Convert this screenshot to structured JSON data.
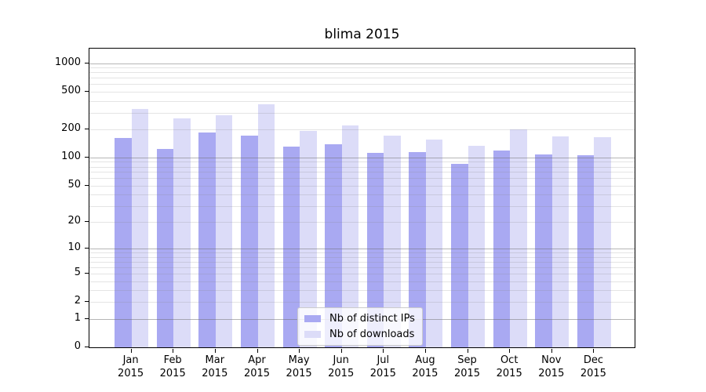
{
  "title": "blima 2015",
  "chart_data": {
    "type": "bar",
    "title": "blima 2015",
    "categories": [
      "Jan 2015",
      "Feb 2015",
      "Mar 2015",
      "Apr 2015",
      "May 2015",
      "Jun 2015",
      "Jul 2015",
      "Aug 2015",
      "Sep 2015",
      "Oct 2015",
      "Nov 2015",
      "Dec 2015"
    ],
    "series": [
      {
        "name": "Nb of distinct IPs",
        "color": "#a9a9f2",
        "values": [
          163,
          124,
          184,
          170,
          131,
          139,
          112,
          114,
          85,
          120,
          108,
          107
        ]
      },
      {
        "name": "Nb of downloads",
        "color": "#dcdcf8",
        "values": [
          331,
          260,
          280,
          366,
          194,
          222,
          172,
          157,
          134,
          198,
          169,
          166
        ]
      }
    ],
    "y_axis": {
      "scale": "log1p",
      "ticks": [
        0,
        1,
        2,
        5,
        10,
        20,
        50,
        100,
        200,
        500,
        1000
      ],
      "major_gridlines": [
        1,
        10,
        100,
        1000
      ],
      "top": 1430
    },
    "grid": true,
    "legend_position": "lower-center",
    "xlabel": "",
    "ylabel": ""
  },
  "legend": {
    "items": [
      {
        "label": "Nb of distinct IPs",
        "color": "#a9a9f2"
      },
      {
        "label": "Nb of downloads",
        "color": "#dcdcf8"
      }
    ]
  },
  "colors": {
    "background": "#ffffff",
    "spine": "#000000",
    "major_grid": "#b7b7b7",
    "minor_grid": "#e6e6e6"
  }
}
